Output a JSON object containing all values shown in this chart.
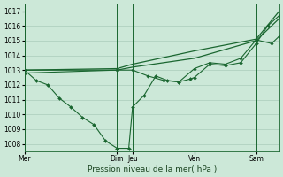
{
  "background_color": "#cce8d8",
  "grid_color": "#aaccbb",
  "line_color": "#1a6630",
  "marker_color": "#1a6630",
  "xlabel": "Pression niveau de la mer( hPa )",
  "ylim": [
    1007.5,
    1017.5
  ],
  "yticks": [
    1008,
    1009,
    1010,
    1011,
    1012,
    1013,
    1014,
    1015,
    1016,
    1017
  ],
  "day_labels": [
    "Mer",
    "Dim",
    "Jeu",
    "Ven",
    "Sam"
  ],
  "day_positions": [
    0,
    48,
    56,
    88,
    120
  ],
  "total_steps": 132,
  "series1": {
    "x": [
      0,
      6,
      12,
      18,
      24,
      30,
      36,
      42,
      48,
      54,
      56,
      62,
      68,
      74,
      80,
      86,
      88,
      96,
      104,
      112,
      120,
      126,
      132
    ],
    "y": [
      1013.0,
      1012.3,
      1012.0,
      1011.1,
      1010.5,
      1009.8,
      1009.3,
      1008.2,
      1007.7,
      1007.7,
      1010.5,
      1011.3,
      1012.6,
      1012.3,
      1012.2,
      1012.4,
      1012.5,
      1013.4,
      1013.3,
      1013.5,
      1014.8,
      1016.0,
      1016.7
    ]
  },
  "series2": {
    "x": [
      0,
      48,
      56,
      88,
      120,
      132
    ],
    "y": [
      1013.0,
      1013.1,
      1013.4,
      1014.3,
      1015.1,
      1017.0
    ]
  },
  "series3": {
    "x": [
      0,
      48,
      56,
      88,
      120,
      132
    ],
    "y": [
      1013.0,
      1013.0,
      1013.2,
      1013.8,
      1015.0,
      1016.5
    ]
  },
  "series4": {
    "x": [
      0,
      48,
      56,
      64,
      72,
      80,
      88,
      96,
      104,
      112,
      120,
      128,
      132
    ],
    "y": [
      1012.8,
      1013.0,
      1013.0,
      1012.6,
      1012.3,
      1012.2,
      1013.1,
      1013.5,
      1013.4,
      1013.8,
      1015.05,
      1014.8,
      1015.3
    ]
  }
}
